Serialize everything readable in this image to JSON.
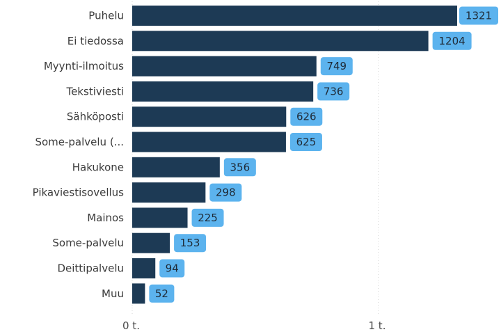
{
  "chart_data": {
    "type": "bar",
    "orientation": "horizontal",
    "categories": [
      "Puhelu",
      "Ei tiedossa",
      "Myynti-ilmoitus",
      "Tekstiviesti",
      "Sähköposti",
      "Some-palvelu (...",
      "Hakukone",
      "Pikaviestisovellus",
      "Mainos",
      "Some-palvelu",
      "Deittipalvelu",
      "Muu"
    ],
    "values": [
      1321,
      1204,
      749,
      736,
      626,
      625,
      356,
      298,
      225,
      153,
      94,
      52
    ],
    "value_labels": [
      "1321",
      "1204",
      "749",
      "736",
      "626",
      "625",
      "356",
      "298",
      "225",
      "153",
      "94",
      "52"
    ],
    "xlim": [
      0,
      1000
    ],
    "xticks": [
      {
        "value": 0,
        "label": "0 t."
      },
      {
        "value": 1000,
        "label": "1 t."
      }
    ],
    "grid": true,
    "colors": {
      "bar": "#1d3a55",
      "label_bg": "#5cb3ee",
      "gridline": "#d6d6d6"
    }
  }
}
